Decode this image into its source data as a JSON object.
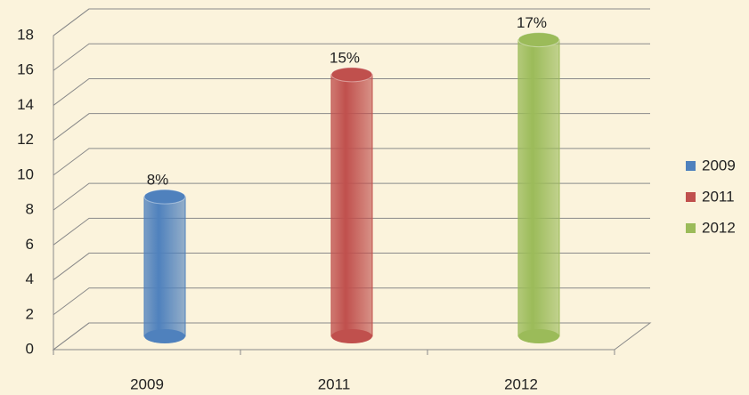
{
  "chart_data": {
    "type": "bar",
    "categories": [
      "2009",
      "2011",
      "2012"
    ],
    "values": [
      8,
      15,
      17
    ],
    "value_labels": [
      "8%",
      "15%",
      "17%"
    ],
    "colors": [
      "#4f81bd",
      "#c0504d",
      "#9bbb59"
    ],
    "ylim": [
      0,
      18
    ],
    "yticks": [
      0,
      2,
      4,
      6,
      8,
      10,
      12,
      14,
      16,
      18
    ],
    "grid": true,
    "legend": "right"
  }
}
